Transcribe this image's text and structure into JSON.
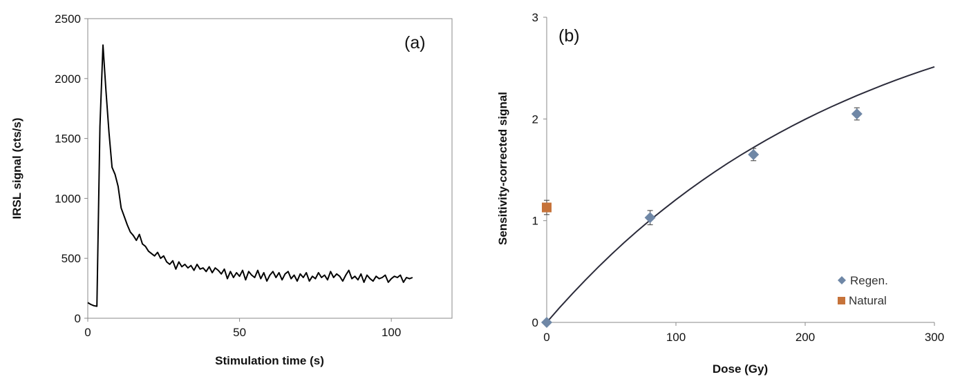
{
  "chart_data": [
    {
      "type": "line",
      "panel_label": "(a)",
      "xlabel": "Stimulation time (s)",
      "ylabel": "IRSL signal (cts/s)",
      "xlim": [
        0,
        120
      ],
      "ylim": [
        0,
        2500
      ],
      "x_ticks": [
        0,
        50,
        100
      ],
      "y_ticks": [
        0,
        500,
        1000,
        1500,
        2000,
        2500
      ],
      "grid": false,
      "series": [
        {
          "color": "#000000",
          "x": [
            0,
            1,
            2,
            3,
            4,
            5,
            6,
            7,
            8,
            9,
            10,
            11,
            12,
            13,
            14,
            15,
            16,
            17,
            18,
            19,
            20,
            21,
            22,
            23,
            24,
            25,
            26,
            27,
            28,
            29,
            30,
            31,
            32,
            33,
            34,
            35,
            36,
            37,
            38,
            39,
            40,
            41,
            42,
            43,
            44,
            45,
            46,
            47,
            48,
            49,
            50,
            51,
            52,
            53,
            54,
            55,
            56,
            57,
            58,
            59,
            60,
            61,
            62,
            63,
            64,
            65,
            66,
            67,
            68,
            69,
            70,
            71,
            72,
            73,
            74,
            75,
            76,
            77,
            78,
            79,
            80,
            81,
            82,
            83,
            84,
            85,
            86,
            87,
            88,
            89,
            90,
            91,
            92,
            93,
            94,
            95,
            96,
            97,
            98,
            99,
            100,
            101,
            102,
            103,
            104,
            105,
            106,
            107
          ],
          "y": [
            130,
            115,
            105,
            100,
            1600,
            2280,
            1900,
            1550,
            1260,
            1200,
            1100,
            920,
            850,
            780,
            720,
            690,
            650,
            700,
            620,
            600,
            560,
            540,
            520,
            550,
            500,
            520,
            470,
            450,
            480,
            410,
            470,
            430,
            450,
            420,
            440,
            400,
            450,
            410,
            420,
            390,
            430,
            380,
            420,
            400,
            370,
            410,
            330,
            390,
            340,
            380,
            350,
            400,
            320,
            390,
            360,
            340,
            400,
            330,
            380,
            310,
            360,
            390,
            340,
            380,
            320,
            370,
            390,
            330,
            360,
            310,
            370,
            340,
            380,
            310,
            350,
            330,
            380,
            340,
            360,
            320,
            390,
            340,
            370,
            350,
            310,
            360,
            400,
            330,
            350,
            320,
            370,
            300,
            360,
            330,
            310,
            350,
            330,
            340,
            360,
            300,
            330,
            350,
            340,
            360,
            300,
            340,
            330,
            340
          ]
        }
      ]
    },
    {
      "type": "scatter",
      "panel_label": "(b)",
      "xlabel": "Dose (Gy)",
      "ylabel": "Sensitivity-corrected signal",
      "xlim": [
        0,
        300
      ],
      "ylim": [
        0,
        3
      ],
      "x_ticks": [
        0,
        100,
        200,
        300
      ],
      "y_ticks": [
        0,
        1,
        2,
        3
      ],
      "grid": false,
      "legend_position": "bottom-right",
      "series": [
        {
          "name": "Regen.",
          "marker": "diamond",
          "color": "#6f87a6",
          "x": [
            0,
            80,
            160,
            240
          ],
          "y": [
            0,
            1.03,
            1.65,
            2.05
          ],
          "error": [
            0.02,
            0.07,
            0.06,
            0.06
          ]
        },
        {
          "name": "Natural",
          "marker": "square",
          "color": "#c6733a",
          "x": [
            0
          ],
          "y": [
            1.13
          ],
          "error": [
            0.07
          ]
        }
      ],
      "fit_curve": {
        "color": "#2b2b3a",
        "x": [
          0,
          10,
          20,
          30,
          40,
          50,
          60,
          70,
          80,
          90,
          100,
          110,
          120,
          130,
          140,
          150,
          160,
          170,
          180,
          190,
          200,
          210,
          220,
          230,
          240,
          250,
          260,
          270,
          280,
          290,
          300
        ],
        "y": [
          0,
          0.145,
          0.284,
          0.417,
          0.545,
          0.668,
          0.785,
          0.897,
          1.005,
          1.108,
          1.207,
          1.302,
          1.393,
          1.48,
          1.564,
          1.644,
          1.72,
          1.794,
          1.864,
          1.932,
          1.997,
          2.059,
          2.118,
          2.175,
          2.23,
          2.282,
          2.333,
          2.381,
          2.427,
          2.471,
          2.513
        ]
      }
    }
  ]
}
